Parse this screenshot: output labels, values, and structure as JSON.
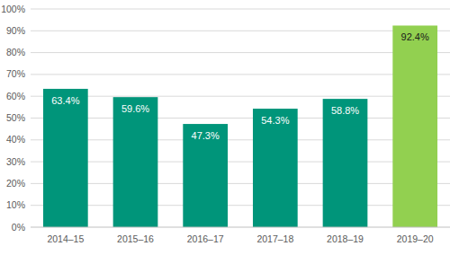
{
  "chart_data": {
    "type": "bar",
    "categories": [
      "2014–15",
      "2015–16",
      "2016–17",
      "2017–18",
      "2018–19",
      "2019–20"
    ],
    "values": [
      63.4,
      59.6,
      47.3,
      54.3,
      58.8,
      92.4
    ],
    "value_labels": [
      "63.4%",
      "59.6%",
      "47.3%",
      "54.3%",
      "58.8%",
      "92.4%"
    ],
    "colors": [
      "#00957a",
      "#00957a",
      "#00957a",
      "#00957a",
      "#00957a",
      "#92d050"
    ],
    "ylim": [
      0,
      100
    ],
    "yticks": [
      {
        "value": 0,
        "label": "0%"
      },
      {
        "value": 10,
        "label": "10%"
      },
      {
        "value": 20,
        "label": "20%"
      },
      {
        "value": 30,
        "label": "30%"
      },
      {
        "value": 40,
        "label": "40%"
      },
      {
        "value": 50,
        "label": "50%"
      },
      {
        "value": 60,
        "label": "60%"
      },
      {
        "value": 70,
        "label": "70%"
      },
      {
        "value": 80,
        "label": "80%"
      },
      {
        "value": 90,
        "label": "90%"
      },
      {
        "value": 100,
        "label": "100%"
      }
    ],
    "grid": true,
    "data_labels": true
  }
}
